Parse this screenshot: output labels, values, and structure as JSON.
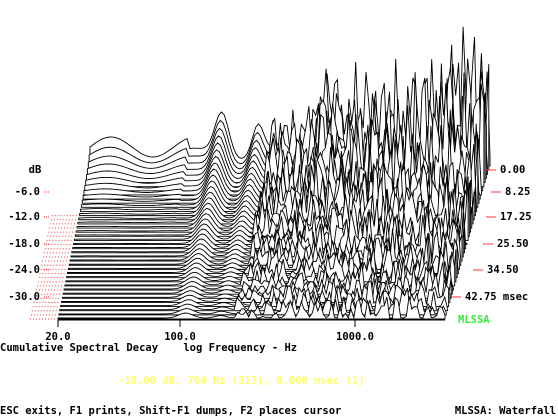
{
  "axis": {
    "y_label": "dB",
    "y_ticks": [
      "-6.0",
      "-12.0",
      "-18.0",
      "-24.0",
      "-30.0"
    ],
    "time_ticks": [
      "0.00",
      "8.25",
      "17.25",
      "25.50",
      "34.50",
      "42.75 msec"
    ],
    "x_ticks": [
      "20.0",
      "100.0",
      "1000.0"
    ]
  },
  "brand": "MLSSA",
  "caption": "Cumulative Spectral Decay    log Frequency - Hz",
  "status": "-18.06 dB, 764 Hz (313), 0.000 msec (1)",
  "footer": {
    "left": "ESC exits, F1 prints, Shift-F1 dumps, F2 places cursor",
    "right": "MLSSA: Waterfall"
  }
}
